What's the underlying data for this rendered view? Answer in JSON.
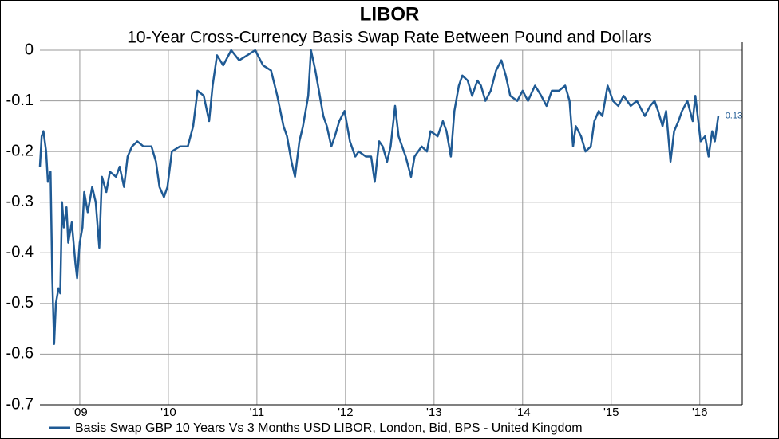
{
  "chart_data": {
    "type": "line",
    "title": "LIBOR",
    "subtitle": "10-Year Cross-Currency Basis Swap Rate Between Pound and Dollars",
    "x": [
      2008.55,
      2008.57,
      2008.59,
      2008.62,
      2008.64,
      2008.67,
      2008.69,
      2008.71,
      2008.73,
      2008.76,
      2008.78,
      2008.8,
      2008.82,
      2008.85,
      2008.87,
      2008.91,
      2008.95,
      2008.97,
      2009.0,
      2009.03,
      2009.05,
      2009.09,
      2009.14,
      2009.18,
      2009.22,
      2009.25,
      2009.3,
      2009.34,
      2009.41,
      2009.45,
      2009.5,
      2009.54,
      2009.59,
      2009.65,
      2009.72,
      2009.81,
      2009.86,
      2009.9,
      2009.95,
      2009.99,
      2010.04,
      2010.13,
      2010.22,
      2010.28,
      2010.33,
      2010.4,
      2010.46,
      2010.5,
      2010.55,
      2010.62,
      2010.71,
      2010.8,
      2010.89,
      2010.98,
      2011.07,
      2011.16,
      2011.23,
      2011.3,
      2011.34,
      2011.39,
      2011.43,
      2011.48,
      2011.52,
      2011.58,
      2011.61,
      2011.66,
      2011.7,
      2011.75,
      2011.79,
      2011.84,
      2011.88,
      2011.93,
      2011.99,
      2012.05,
      2012.11,
      2012.15,
      2012.23,
      2012.29,
      2012.33,
      2012.38,
      2012.42,
      2012.47,
      2012.51,
      2012.56,
      2012.6,
      2012.68,
      2012.74,
      2012.78,
      2012.86,
      2012.92,
      2012.96,
      2013.04,
      2013.1,
      2013.14,
      2013.19,
      2013.23,
      2013.28,
      2013.32,
      2013.38,
      2013.43,
      2013.49,
      2013.53,
      2013.58,
      2013.64,
      2013.7,
      2013.76,
      2013.81,
      2013.86,
      2013.94,
      2014.0,
      2014.06,
      2014.14,
      2014.21,
      2014.27,
      2014.33,
      2014.41,
      2014.48,
      2014.53,
      2014.57,
      2014.6,
      2014.66,
      2014.71,
      2014.77,
      2014.81,
      2014.86,
      2014.9,
      2014.96,
      2015.02,
      2015.08,
      2015.14,
      2015.22,
      2015.29,
      2015.38,
      2015.44,
      2015.49,
      2015.53,
      2015.58,
      2015.62,
      2015.67,
      2015.71,
      2015.76,
      2015.8,
      2015.86,
      2015.92,
      2015.95,
      2016.01,
      2016.06,
      2016.1,
      2016.14,
      2016.17,
      2016.21
    ],
    "series": [
      {
        "name": "Basis Swap GBP 10 Years Vs 3 Months USD LIBOR, London, Bid, BPS - United Kingdom",
        "color": "#1f5a94",
        "values": [
          -0.23,
          -0.17,
          -0.16,
          -0.2,
          -0.26,
          -0.24,
          -0.45,
          -0.58,
          -0.5,
          -0.47,
          -0.48,
          -0.3,
          -0.35,
          -0.31,
          -0.38,
          -0.34,
          -0.42,
          -0.45,
          -0.38,
          -0.35,
          -0.28,
          -0.32,
          -0.27,
          -0.3,
          -0.39,
          -0.25,
          -0.28,
          -0.24,
          -0.25,
          -0.23,
          -0.27,
          -0.21,
          -0.19,
          -0.18,
          -0.19,
          -0.19,
          -0.22,
          -0.27,
          -0.29,
          -0.27,
          -0.2,
          -0.19,
          -0.19,
          -0.15,
          -0.08,
          -0.09,
          -0.14,
          -0.07,
          -0.01,
          -0.03,
          0,
          -0.02,
          -0.01,
          0,
          -0.03,
          -0.04,
          -0.09,
          -0.15,
          -0.17,
          -0.22,
          -0.25,
          -0.18,
          -0.15,
          -0.09,
          0,
          -0.04,
          -0.08,
          -0.13,
          -0.15,
          -0.19,
          -0.17,
          -0.14,
          -0.12,
          -0.18,
          -0.21,
          -0.2,
          -0.21,
          -0.21,
          -0.26,
          -0.18,
          -0.19,
          -0.22,
          -0.19,
          -0.11,
          -0.17,
          -0.21,
          -0.25,
          -0.21,
          -0.19,
          -0.2,
          -0.16,
          -0.17,
          -0.14,
          -0.16,
          -0.21,
          -0.12,
          -0.07,
          -0.05,
          -0.06,
          -0.09,
          -0.06,
          -0.07,
          -0.1,
          -0.08,
          -0.04,
          -0.02,
          -0.05,
          -0.09,
          -0.1,
          -0.08,
          -0.1,
          -0.07,
          -0.09,
          -0.11,
          -0.08,
          -0.08,
          -0.07,
          -0.1,
          -0.19,
          -0.15,
          -0.17,
          -0.2,
          -0.19,
          -0.14,
          -0.12,
          -0.13,
          -0.07,
          -0.1,
          -0.11,
          -0.09,
          -0.11,
          -0.1,
          -0.13,
          -0.11,
          -0.1,
          -0.12,
          -0.15,
          -0.12,
          -0.22,
          -0.16,
          -0.14,
          -0.12,
          -0.1,
          -0.14,
          -0.09,
          -0.18,
          -0.17,
          -0.21,
          -0.16,
          -0.18,
          -0.13
        ]
      }
    ],
    "xlim": [
      2008.55,
      2016.48
    ],
    "xticks": [
      {
        "value": 2009,
        "label": "'09"
      },
      {
        "value": 2010,
        "label": "'10"
      },
      {
        "value": 2011,
        "label": "'11"
      },
      {
        "value": 2012,
        "label": "'12"
      },
      {
        "value": 2013,
        "label": "'13"
      },
      {
        "value": 2014,
        "label": "'14"
      },
      {
        "value": 2015,
        "label": "'15"
      },
      {
        "value": 2016,
        "label": "'16"
      }
    ],
    "ylim": [
      -0.7,
      0
    ],
    "yticks": [
      0,
      -0.1,
      -0.2,
      -0.3,
      -0.4,
      -0.5,
      -0.6,
      -0.7
    ],
    "grid": true
  }
}
